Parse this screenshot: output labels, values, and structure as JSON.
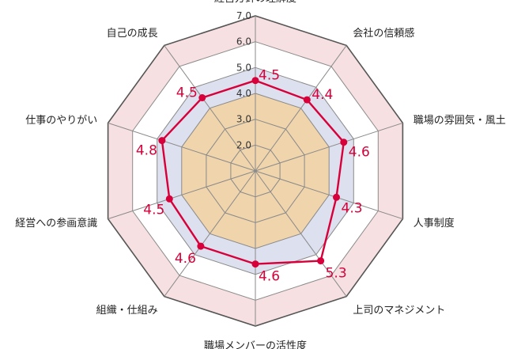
{
  "chart_data": {
    "type": "radar",
    "title": "",
    "categories": [
      "経営方針の理解度",
      "会社の信頼感",
      "職場の雰囲気・風土",
      "人事制度",
      "上司のマネジメント",
      "職場メンバーの活性度",
      "組織・仕組み",
      "経営への参画意識",
      "仕事のやりがい",
      "自己の成長"
    ],
    "series": [
      {
        "values": [
          4.5,
          4.4,
          4.6,
          4.3,
          5.3,
          4.6,
          4.6,
          4.5,
          4.8,
          4.5
        ]
      }
    ],
    "value_labels": [
      "4.5",
      "4.4",
      "4.6",
      "4.3",
      "5.3",
      "4.6",
      "4.6",
      "4.5",
      "4.8",
      "4.5"
    ],
    "range": [
      1,
      7
    ],
    "ticks": [
      "2.0",
      "3.0",
      "4.0",
      "5.0",
      "6.0",
      "7.0"
    ],
    "bands": [
      {
        "from": 1,
        "to": 4,
        "color": "#f0d4ac"
      },
      {
        "from": 4,
        "to": 5,
        "color": "#dde0ee"
      },
      {
        "from": 5,
        "to": 6,
        "color": "#ffffff"
      },
      {
        "from": 6,
        "to": 7,
        "color": "#f6e0e2"
      }
    ],
    "colors": {
      "series": "#d7003a",
      "grid": "#8a8a8a",
      "outer_ring": "#555555"
    }
  }
}
